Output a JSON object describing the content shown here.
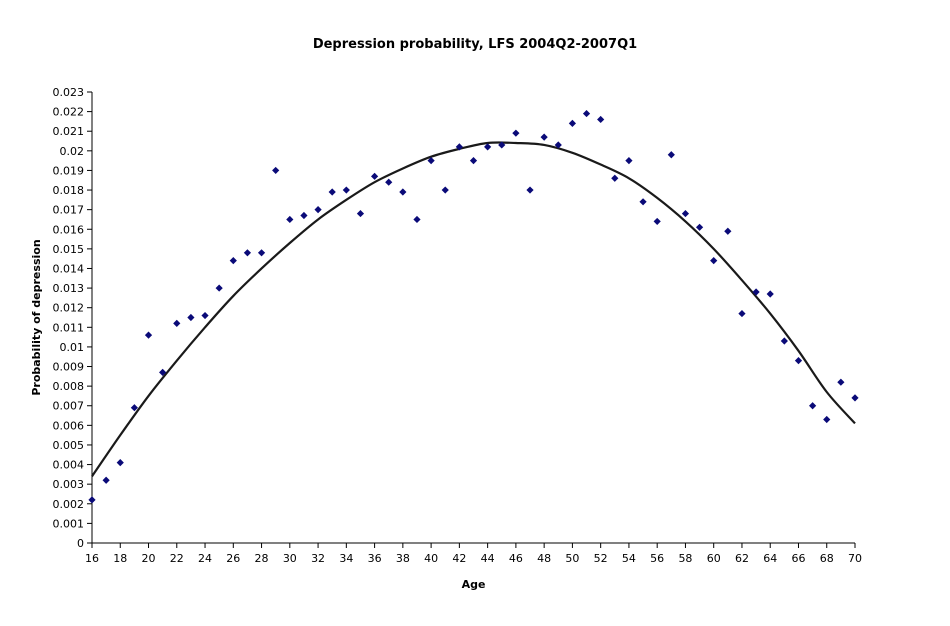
{
  "chart_data": {
    "type": "scatter",
    "title": "Depression probability, LFS 2004Q2-2007Q1",
    "xlabel": "Age",
    "ylabel": "Probability of depression",
    "xlim": [
      16,
      70
    ],
    "ylim": [
      0,
      0.023
    ],
    "x_ticks": [
      "16",
      "18",
      "20",
      "22",
      "24",
      "26",
      "28",
      "30",
      "32",
      "34",
      "36",
      "38",
      "40",
      "42",
      "44",
      "46",
      "48",
      "50",
      "52",
      "54",
      "56",
      "58",
      "60",
      "62",
      "64",
      "66",
      "68",
      "70"
    ],
    "y_ticks": [
      "0",
      "0.001",
      "0.002",
      "0.003",
      "0.004",
      "0.005",
      "0.006",
      "0.007",
      "0.008",
      "0.009",
      "0.01",
      "0.011",
      "0.012",
      "0.013",
      "0.014",
      "0.015",
      "0.016",
      "0.017",
      "0.018",
      "0.019",
      "0.02",
      "0.021",
      "0.022",
      "0.023"
    ],
    "grid": false,
    "legend": "none",
    "marker": "diamond",
    "colors": {
      "points": "#0a0a78",
      "trend": "#1a1a1a",
      "axis": "#000000"
    },
    "series": [
      {
        "kind": "points",
        "x": [
          16,
          17,
          18,
          19,
          20,
          21,
          22,
          23,
          24,
          25,
          26,
          27,
          28,
          29,
          30,
          31,
          32,
          33,
          34,
          35,
          36,
          37,
          38,
          39,
          40,
          41,
          42,
          43,
          44,
          45,
          46,
          47,
          48,
          49,
          50,
          51,
          52,
          53,
          54,
          55,
          56,
          57,
          58,
          59,
          60,
          61,
          62,
          63,
          64,
          65,
          66,
          67,
          68,
          69,
          70
        ],
        "y": [
          0.0022,
          0.0032,
          0.0041,
          0.0069,
          0.0106,
          0.0087,
          0.0112,
          0.0115,
          0.0116,
          0.013,
          0.0144,
          0.0148,
          0.0148,
          0.019,
          0.0165,
          0.0167,
          0.017,
          0.0179,
          0.018,
          0.0168,
          0.0187,
          0.0184,
          0.0179,
          0.0165,
          0.0195,
          0.018,
          0.0202,
          0.0195,
          0.0202,
          0.0203,
          0.0209,
          0.018,
          0.0207,
          0.0203,
          0.0214,
          0.0219,
          0.0216,
          0.0186,
          0.0195,
          0.0174,
          0.0164,
          0.0198,
          0.0168,
          0.0161,
          0.0144,
          0.0159,
          0.0117,
          0.0128,
          0.0127,
          0.0103,
          0.0093,
          0.007,
          0.0063,
          0.0082,
          0.0074
        ]
      },
      {
        "kind": "trend",
        "x": [
          16,
          18,
          20,
          22,
          24,
          26,
          28,
          30,
          32,
          34,
          36,
          38,
          40,
          42,
          44,
          46,
          48,
          50,
          52,
          54,
          56,
          58,
          60,
          62,
          64,
          66,
          68,
          70
        ],
        "y": [
          0.0034,
          0.0055,
          0.0075,
          0.0093,
          0.011,
          0.0126,
          0.014,
          0.0153,
          0.0165,
          0.0175,
          0.0184,
          0.0191,
          0.0197,
          0.0201,
          0.0204,
          0.0204,
          0.0203,
          0.0199,
          0.0193,
          0.0186,
          0.0176,
          0.0164,
          0.015,
          0.0134,
          0.0117,
          0.0098,
          0.0077,
          0.0061
        ]
      }
    ]
  }
}
